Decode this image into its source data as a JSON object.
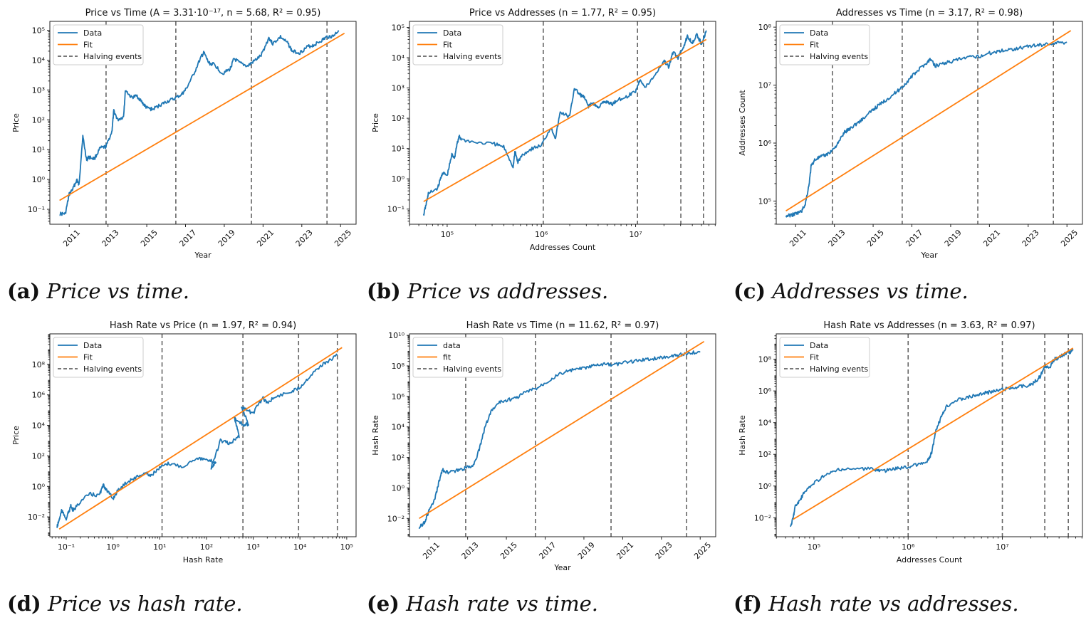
{
  "colors": {
    "data": "#1f77b4",
    "fit": "#ff7f0e",
    "halving": "#666666"
  },
  "panels": [
    {
      "caption_label": "(a)",
      "caption_text": "Price vs time.",
      "chart_data": {
        "type": "line",
        "title": "Price vs Time (A = 3.31·10⁻¹⁷, n = 5.68, R² = 0.95)",
        "xlabel": "Year",
        "ylabel": "Price",
        "x_scale": "time",
        "y_scale": "log",
        "xlim": [
          2010.0,
          2025.8
        ],
        "ylim_log10": [
          -1.5,
          5.3
        ],
        "x_ticks": [
          2011,
          2013,
          2015,
          2017,
          2019,
          2021,
          2023,
          2025
        ],
        "x_tick_labels": [
          "2011",
          "2013",
          "2015",
          "2017",
          "2019",
          "2021",
          "2023",
          "2025"
        ],
        "y_ticks_log10": [
          -1,
          0,
          1,
          2,
          3,
          4,
          5
        ],
        "y_tick_labels": [
          "10⁻¹",
          "10⁰",
          "10¹",
          "10²",
          "10³",
          "10⁴",
          "10⁵"
        ],
        "legend": [
          "Data",
          "Fit",
          "Halving events"
        ],
        "legend_position": "upper-left",
        "halving_events": [
          2012.9,
          2016.5,
          2020.4,
          2024.3
        ],
        "series": [
          {
            "name": "Data",
            "x": [
              2010.5,
              2010.8,
              2011.0,
              2011.2,
              2011.4,
              2011.5,
              2011.7,
              2011.9,
              2012.0,
              2012.3,
              2012.6,
              2012.9,
              2013.2,
              2013.3,
              2013.5,
              2013.8,
              2013.9,
              2014.2,
              2014.5,
              2014.8,
              2015.0,
              2015.3,
              2015.7,
              2016.0,
              2016.4,
              2016.8,
              2017.0,
              2017.4,
              2017.8,
              2017.95,
              2018.2,
              2018.5,
              2018.9,
              2019.3,
              2019.5,
              2019.8,
              2020.2,
              2020.5,
              2020.9,
              2021.3,
              2021.5,
              2021.9,
              2022.3,
              2022.5,
              2022.9,
              2023.3,
              2023.6,
              2024.0,
              2024.3,
              2024.6,
              2024.9
            ],
            "y_log10": [
              -1.15,
              -1.15,
              -0.5,
              -0.3,
              0.0,
              -0.2,
              1.45,
              0.65,
              0.75,
              0.7,
              1.05,
              1.1,
              1.6,
              2.3,
              2.0,
              2.1,
              3.0,
              2.75,
              2.8,
              2.55,
              2.4,
              2.35,
              2.5,
              2.6,
              2.7,
              2.85,
              3.0,
              3.5,
              4.1,
              4.25,
              3.9,
              3.85,
              3.55,
              3.7,
              4.05,
              3.9,
              3.8,
              3.95,
              4.15,
              4.75,
              4.55,
              4.78,
              4.55,
              4.3,
              4.25,
              4.45,
              4.5,
              4.65,
              4.78,
              4.8,
              5.0
            ]
          },
          {
            "name": "Fit",
            "x": [
              2010.5,
              2025.2
            ],
            "y_log10": [
              -0.7,
              4.9
            ]
          }
        ]
      }
    },
    {
      "caption_label": "(b)",
      "caption_text": "Price vs addresses.",
      "chart_data": {
        "type": "line",
        "title": "Price vs Addresses (n = 1.77, R² = 0.95)",
        "xlabel": "Addresses Count",
        "ylabel": "Price",
        "x_scale": "log",
        "y_scale": "log",
        "xlim_log10": [
          4.6,
          7.85
        ],
        "ylim_log10": [
          -1.5,
          5.2
        ],
        "x_ticks_log10": [
          5,
          6,
          7
        ],
        "x_tick_labels": [
          "10⁵",
          "10⁶",
          "10⁷"
        ],
        "y_ticks_log10": [
          -1,
          0,
          1,
          2,
          3,
          4,
          5
        ],
        "y_tick_labels": [
          "10⁻¹",
          "10⁰",
          "10¹",
          "10²",
          "10³",
          "10⁴",
          "10⁵"
        ],
        "legend": [
          "Data",
          "Fit",
          "Halving events"
        ],
        "legend_position": "upper-left",
        "halving_events_log10": [
          6.02,
          7.02,
          7.48,
          7.72
        ],
        "series": [
          {
            "name": "Data",
            "x_log10": [
              4.75,
              4.78,
              4.8,
              4.9,
              4.95,
              5.0,
              5.05,
              5.08,
              5.1,
              5.13,
              5.15,
              5.3,
              5.5,
              5.6,
              5.7,
              5.72,
              5.75,
              5.8,
              5.9,
              6.0,
              6.1,
              6.15,
              6.2,
              6.3,
              6.35,
              6.4,
              6.45,
              6.5,
              6.55,
              6.6,
              6.65,
              6.7,
              6.75,
              6.8,
              6.9,
              7.0,
              7.05,
              7.1,
              7.2,
              7.3,
              7.35,
              7.4,
              7.45,
              7.5,
              7.55,
              7.6,
              7.65,
              7.7,
              7.75
            ],
            "y_log10": [
              -1.2,
              -0.8,
              -0.5,
              -0.3,
              0.2,
              0.1,
              0.8,
              0.7,
              1.1,
              1.4,
              1.3,
              1.2,
              1.15,
              1.05,
              0.4,
              0.9,
              0.55,
              0.8,
              1.0,
              1.1,
              1.7,
              1.35,
              2.2,
              2.05,
              3.0,
              2.8,
              2.7,
              2.4,
              2.5,
              2.35,
              2.5,
              2.55,
              2.45,
              2.6,
              2.7,
              2.9,
              3.3,
              3.0,
              3.4,
              3.9,
              3.7,
              4.2,
              4.0,
              4.3,
              4.7,
              4.5,
              4.75,
              4.45,
              4.9
            ]
          },
          {
            "name": "Fit",
            "x_log10": [
              4.75,
              7.75
            ],
            "y_log10": [
              -0.75,
              4.6
            ]
          }
        ]
      }
    },
    {
      "caption_label": "(c)",
      "caption_text": "Addresses vs time.",
      "chart_data": {
        "type": "line",
        "title": "Addresses vs Time (n = 3.17, R² = 0.98)",
        "xlabel": "Year",
        "ylabel": "Addresses Count",
        "x_scale": "time",
        "y_scale": "log",
        "xlim": [
          2010.0,
          2025.8
        ],
        "ylim_log10": [
          4.6,
          8.1
        ],
        "x_ticks": [
          2011,
          2013,
          2015,
          2017,
          2019,
          2021,
          2023,
          2025
        ],
        "x_tick_labels": [
          "2011",
          "2013",
          "2015",
          "2017",
          "2019",
          "2021",
          "2023",
          "2025"
        ],
        "y_ticks_log10": [
          5,
          6,
          7,
          8
        ],
        "y_tick_labels": [
          "10⁵",
          "10⁶",
          "10⁷",
          "10⁸"
        ],
        "legend": [
          "Data",
          "Fit",
          "Halving events"
        ],
        "legend_position": "upper-left",
        "halving_events": [
          2012.9,
          2016.5,
          2020.4,
          2024.3
        ],
        "series": [
          {
            "name": "Data",
            "x": [
              2010.5,
              2010.8,
              2011.0,
              2011.3,
              2011.5,
              2011.7,
              2011.8,
              2012.0,
              2012.3,
              2012.6,
              2012.9,
              2013.2,
              2013.5,
              2013.8,
              2014.2,
              2014.6,
              2015.0,
              2015.4,
              2015.8,
              2016.2,
              2016.6,
              2017.0,
              2017.4,
              2017.8,
              2017.95,
              2018.2,
              2018.6,
              2019.0,
              2019.5,
              2020.0,
              2020.5,
              2021.0,
              2021.5,
              2022.0,
              2022.5,
              2023.0,
              2023.5,
              2024.0,
              2024.5,
              2025.0
            ],
            "y_log10": [
              4.74,
              4.76,
              4.78,
              4.82,
              4.95,
              5.3,
              5.6,
              5.72,
              5.76,
              5.8,
              5.88,
              6.0,
              6.18,
              6.25,
              6.35,
              6.45,
              6.58,
              6.68,
              6.78,
              6.88,
              7.0,
              7.15,
              7.28,
              7.4,
              7.45,
              7.33,
              7.38,
              7.4,
              7.45,
              7.48,
              7.5,
              7.55,
              7.59,
              7.61,
              7.64,
              7.67,
              7.69,
              7.71,
              7.73,
              7.74
            ]
          },
          {
            "name": "Fit",
            "x": [
              2010.5,
              2025.2
            ],
            "y_log10": [
              4.83,
              7.94
            ]
          }
        ]
      }
    },
    {
      "caption_label": "(d)",
      "caption_text": "Price vs hash rate.",
      "chart_data": {
        "type": "line",
        "title": "Hash Rate vs Price (n = 1.97, R² = 0.94)",
        "xlabel": "Hash Rate",
        "ylabel": "Price",
        "x_scale": "log",
        "y_scale": "log",
        "xlim_log10": [
          -1.35,
          5.2
        ],
        "ylim_log10": [
          -3.3,
          10.0
        ],
        "x_ticks_log10": [
          -1,
          0,
          1,
          2,
          3,
          4,
          5
        ],
        "x_tick_labels": [
          "10⁻¹",
          "10⁰",
          "10¹",
          "10²",
          "10³",
          "10⁴",
          "10⁵"
        ],
        "y_ticks_log10": [
          -2,
          0,
          2,
          4,
          6,
          8
        ],
        "y_tick_labels": [
          "10⁻²",
          "10⁰",
          "10²",
          "10⁴",
          "10⁶",
          "10⁸"
        ],
        "legend": [
          "Data",
          "Fit",
          "Halving events"
        ],
        "legend_position": "upper-left",
        "halving_events_log10": [
          1.05,
          2.78,
          3.97,
          4.8
        ],
        "series": [
          {
            "name": "Data",
            "x_log10": [
              -1.2,
              -1.15,
              -1.1,
              -1.0,
              -0.9,
              -0.85,
              -0.7,
              -0.5,
              -0.3,
              -0.2,
              -0.15,
              0.0,
              0.1,
              0.3,
              0.5,
              0.7,
              0.8,
              1.0,
              1.2,
              1.5,
              1.8,
              2.0,
              2.2,
              2.1,
              2.3,
              2.5,
              2.7,
              2.6,
              2.8,
              2.9,
              2.75,
              2.85,
              3.0,
              3.2,
              3.3,
              3.5,
              3.8,
              4.0,
              4.2,
              4.4,
              4.6,
              4.8
            ],
            "y_log10": [
              -2.7,
              -2.2,
              -1.6,
              -2.1,
              -1.3,
              -1.6,
              -1.0,
              -0.5,
              -0.6,
              0.1,
              -0.2,
              -0.8,
              -0.3,
              0.3,
              0.6,
              0.9,
              0.7,
              1.2,
              1.5,
              1.3,
              1.9,
              1.7,
              1.6,
              1.2,
              3.0,
              2.8,
              3.3,
              4.5,
              4.0,
              4.1,
              5.2,
              5.0,
              4.8,
              5.8,
              5.5,
              5.9,
              6.2,
              6.5,
              7.2,
              7.8,
              8.2,
              8.6
            ]
          },
          {
            "name": "Fit",
            "x_log10": [
              -1.15,
              4.9
            ],
            "y_log10": [
              -2.8,
              9.1
            ]
          }
        ]
      }
    },
    {
      "caption_label": "(e)",
      "caption_text": "Hash rate vs time.",
      "chart_data": {
        "type": "line",
        "title": "Hash Rate vs Time (n = 11.62, R² = 0.97)",
        "xlabel": "Year",
        "ylabel": "Hash Rate",
        "x_scale": "time",
        "y_scale": "log",
        "xlim": [
          2010.0,
          2025.8
        ],
        "ylim_log10": [
          -3.2,
          10.1
        ],
        "x_ticks": [
          2011,
          2013,
          2015,
          2017,
          2019,
          2021,
          2023,
          2025
        ],
        "x_tick_labels": [
          "2011",
          "2013",
          "2015",
          "2017",
          "2019",
          "2021",
          "2023",
          "2025"
        ],
        "y_ticks_log10": [
          -2,
          0,
          2,
          4,
          6,
          8,
          10
        ],
        "y_tick_labels": [
          "10⁻²",
          "10⁰",
          "10²",
          "10⁴",
          "10⁶",
          "10⁸",
          "10¹⁰"
        ],
        "legend": [
          "data",
          "fit",
          "Halving events"
        ],
        "legend_position": "upper-left",
        "halving_events": [
          2012.9,
          2016.5,
          2020.4,
          2024.3
        ],
        "series": [
          {
            "name": "data",
            "x": [
              2010.5,
              2010.8,
              2011.0,
              2011.3,
              2011.5,
              2011.7,
              2012.0,
              2012.5,
              2012.9,
              2013.3,
              2013.6,
              2013.9,
              2014.2,
              2014.6,
              2015.0,
              2015.5,
              2016.0,
              2016.5,
              2017.0,
              2017.5,
              2018.0,
              2018.5,
              2019.0,
              2019.5,
              2020.0,
              2020.5,
              2021.0,
              2021.5,
              2022.0,
              2022.5,
              2023.0,
              2023.5,
              2024.0,
              2024.5,
              2025.0
            ],
            "y_log10": [
              -2.6,
              -2.2,
              -1.5,
              -0.8,
              0.3,
              1.2,
              1.0,
              1.15,
              1.3,
              1.5,
              2.5,
              4.0,
              5.0,
              5.6,
              5.75,
              5.9,
              6.3,
              6.5,
              6.9,
              7.3,
              7.6,
              7.75,
              7.85,
              8.0,
              8.1,
              8.05,
              8.2,
              8.3,
              8.4,
              8.45,
              8.55,
              8.65,
              8.75,
              8.85,
              8.95
            ]
          },
          {
            "name": "fit",
            "x": [
              2010.5,
              2025.2
            ],
            "y_log10": [
              -2.0,
              9.6
            ]
          }
        ]
      }
    },
    {
      "caption_label": "(f)",
      "caption_text": "Hash rate vs addresses.",
      "chart_data": {
        "type": "line",
        "title": "Hash Rate vs Addresses (n = 3.63, R² = 0.97)",
        "xlabel": "Addresses Count",
        "ylabel": "Hash Rate",
        "x_scale": "log",
        "y_scale": "log",
        "xlim_log10": [
          4.6,
          7.85
        ],
        "ylim_log10": [
          -3.2,
          9.6
        ],
        "x_ticks_log10": [
          5,
          6,
          7
        ],
        "x_tick_labels": [
          "10⁵",
          "10⁶",
          "10⁷"
        ],
        "y_ticks_log10": [
          -2,
          0,
          2,
          4,
          6,
          8
        ],
        "y_tick_labels": [
          "10⁻²",
          "10⁰",
          "10²",
          "10⁴",
          "10⁶",
          "10⁸"
        ],
        "legend": [
          "Data",
          "Fit",
          "Halving events"
        ],
        "legend_position": "upper-left",
        "halving_events_log10": [
          6.0,
          7.0,
          7.45,
          7.7
        ],
        "series": [
          {
            "name": "Data",
            "x_log10": [
              4.75,
              4.78,
              4.8,
              4.85,
              4.9,
              5.0,
              5.1,
              5.2,
              5.3,
              5.5,
              5.65,
              5.7,
              5.8,
              5.9,
              6.0,
              6.1,
              6.2,
              6.25,
              6.3,
              6.35,
              6.4,
              6.5,
              6.6,
              6.7,
              6.8,
              6.9,
              7.0,
              7.1,
              7.2,
              7.3,
              7.35,
              7.4,
              7.45,
              7.5,
              7.55,
              7.6,
              7.65,
              7.7,
              7.75
            ],
            "y_log10": [
              -2.6,
              -2.0,
              -1.3,
              -0.9,
              -0.4,
              0.2,
              0.6,
              0.9,
              1.05,
              1.1,
              1.05,
              0.95,
              1.0,
              1.15,
              1.2,
              1.35,
              1.5,
              2.1,
              3.6,
              4.3,
              5.0,
              5.4,
              5.55,
              5.7,
              5.85,
              5.95,
              6.1,
              6.2,
              6.3,
              6.35,
              6.6,
              6.9,
              7.6,
              7.4,
              8.0,
              8.1,
              8.3,
              8.4,
              8.55
            ]
          },
          {
            "name": "Fit",
            "x_log10": [
              4.78,
              7.75
            ],
            "y_log10": [
              -2.1,
              8.7
            ]
          }
        ]
      }
    }
  ]
}
